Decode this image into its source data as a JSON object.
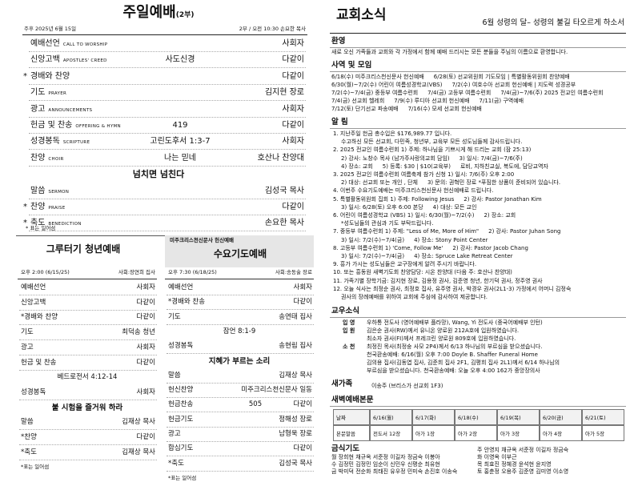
{
  "left": {
    "title": "주일예배",
    "title_note": "(2부)",
    "date": "주후 2025년 6월 15일",
    "service_info": "2부 / 오전 10:30 손요한 목사",
    "order": {
      "rows": [
        {
          "label": "예배선언",
          "en": "CALL TO WORSHIP",
          "right": "사회자"
        },
        {
          "label": "신앙고백",
          "en": "APOSTLES' CREED",
          "mid": "사도신경",
          "right": "다같이"
        },
        {
          "star": "*",
          "label": "경배와 찬양",
          "right": "다같이"
        },
        {
          "label": "기도",
          "en": "PRAYER",
          "right": "김지현 장로"
        },
        {
          "label": "광고",
          "en": "ANNOUNCEMENTS",
          "right": "사회자"
        },
        {
          "label": "헌금 및 찬송",
          "en": "OFFERING & HYMN",
          "mid": "419",
          "right": "다같이"
        },
        {
          "label": "성경봉독",
          "en": "SCRIPTURE",
          "mid": "고린도후서 1:3-7",
          "right": "사회자"
        },
        {
          "label": "찬양",
          "en": "CHOIR",
          "mid": "나는 믿네",
          "right": "호산나 찬양대"
        },
        {
          "heading": "넘치면 넘친다"
        },
        {
          "label": "말씀",
          "en": "SERMON",
          "right": "김성국 목사"
        },
        {
          "star": "*",
          "label": "찬양",
          "en": "PRAISE",
          "right": "다같이"
        },
        {
          "star": "*",
          "label": "축도",
          "en": "BENEDICTION",
          "right": "손요한 목사"
        }
      ]
    },
    "footnote": "* 표는 일어섬",
    "youth": {
      "title": "그루터기 청년예배",
      "time": "오후 2:00 (6/15/25)",
      "leader": "사회:장연희 집사",
      "rows": [
        {
          "label": "예배선언",
          "right": "사회자"
        },
        {
          "label": "신앙고백",
          "right": "다같이"
        },
        {
          "label": "*경배와 찬양",
          "right": "다같이"
        },
        {
          "label": "기도",
          "right": "최덕송 청년"
        },
        {
          "label": "광고",
          "right": "사회자"
        },
        {
          "label": "헌금 및 찬송",
          "right": "다같이"
        },
        {
          "center": "베드로전서 4:12-14"
        },
        {
          "label": "성경봉독",
          "right": "사회자"
        },
        {
          "heading": "불 시험을 즐거워 하라"
        },
        {
          "label": "말씀",
          "right": "김재상 목사"
        },
        {
          "label": "*찬양",
          "right": "다같이"
        },
        {
          "label": "*축도",
          "right": "김재상 목사"
        }
      ],
      "footnote": "*표는 일어섬"
    },
    "wednesday": {
      "header": "미주크리스천신문사 헌신예배",
      "title": "수요기도예배",
      "time": "오후 7:30 (6/18/25)",
      "leader": "사회:송동술 장로",
      "rows": [
        {
          "label": "예배선언",
          "right": "사회자"
        },
        {
          "label": "*경배와 찬송",
          "right": "다같이"
        },
        {
          "label": "기도",
          "right": "송연태 집사"
        },
        {
          "center": "잠언 8:1-9"
        },
        {
          "label": "성경봉독",
          "right": "송현림 집사"
        },
        {
          "heading": "지혜가 부르는 소리"
        },
        {
          "label": "말씀",
          "right": "김재상 목사"
        },
        {
          "label": "헌신찬양",
          "right": "미주크리스천신문사 일동"
        },
        {
          "label": "헌금찬송",
          "mid": "505",
          "right": "다같이"
        },
        {
          "label": "헌금기도",
          "right": "정해성 장로"
        },
        {
          "label": "광고",
          "right": "남형욱 장로"
        },
        {
          "label": "합심기도",
          "right": "다같이"
        },
        {
          "label": "*축도",
          "right": "김성국 목사"
        }
      ],
      "footnote": "*표는 일어섬"
    }
  },
  "right": {
    "title": "교회소식",
    "subtitle": "6월 성령의 달– 성령의 불길 타오르게 하소서",
    "welcome": {
      "heading": "환영",
      "text": "새로 오신 가족들과 교회와 각 가정에서 함께 예배 드리시는 모든 분들을 주님의 이름으로 환영합니다."
    },
    "ministry": {
      "heading": "사역 및 모임",
      "lines": [
        [
          "6/18(수) 미주크리스천신문사 헌신예배",
          "6/28(토) 선교위원회 기도모임 | 특별활동위원회 찬양예배"
        ],
        [
          "6/30(월)~7/2(수) 어린이 여름성경학교(VBS)",
          "7/2(수) 여호수아 선교회 헌신예배 | 지도력 성경공부"
        ],
        [
          "7/2(수)~7/4(금) 중등부 여름수련회",
          "7/4(금) 고등부 여름수련회",
          "7/4(금)~7/6(주) 2025 전교인 여름수련회"
        ],
        [
          "7/4(금) 선교회 헬레희",
          "7/9(수) 루디아 선교회 헌신예배",
          "7/11(금) 구역예배"
        ],
        [
          "7/12(토) 단기선교 파송예배",
          "7/16(수) 모세 선교회 헌신예배"
        ]
      ]
    },
    "announcements": {
      "heading": "알 림",
      "items": [
        [
          [
            "1. 지난주일 헌금 총수입은 $176,989.77 입니다."
          ],
          [
            "수고하신 모든 선교회, 다민족, 청년부, 교육부 모든 성도님들께 감사드립니다."
          ]
        ],
        [
          [
            "2. 2025 전교인 여름수련회 1) 주제: 하나님을 기쁘시게 해 드리는 교회 (잠 25:13)"
          ],
          [
            "2) 강사: 노창수 목사 (남가주사랑의교회 담임)",
            "3) 일시: 7/4(금)~7/6(주)"
          ],
          [
            "4) 장소: 교회",
            "5) 등록: $30 | $10(교육부)",
            "로비, 지하친교실, 복도에, 담당교역자"
          ]
        ],
        [
          [
            "3. 2025 전교인 여름수련회 여름축제 참가 신청 1) 일시: 7/6(주) 오후 2:00"
          ],
          [
            "2) 대상: 선교회 또는 개인 , 단체",
            "3) 문의: 권혁민 장로 *푸짐한 상품이 준비되어 있습니다."
          ]
        ],
        [
          [
            "4. 이번주 수요기도예배는 미주크리스천신문사 헌신예배로 드립니다."
          ]
        ],
        [
          [
            "5. 특별활동위원회 집회 1) 주제: Following Jesus",
            "2) 강사: Pastor Jonathan Kim"
          ],
          [
            "3) 일시: 6/28(토) 오후 6:00 본당",
            "4) 대상: 모든 교인"
          ]
        ],
        [
          [
            "6. 어린이 여름성경학교 (VBS) 1) 일시: 6/30(월)~7/2(수)",
            "2) 장소: 교회"
          ],
          [
            "*성도님들의 관심과 기도 부탁드립니다."
          ]
        ],
        [
          [
            "7. 중등부 여름수련회 1) 주제: \"Less of Me, More of Him\"",
            "2) 강사: Pastor Juhan Song"
          ],
          [
            "3) 일시: 7/2(수)~7/4(금)",
            "4) 장소: Stony Point Center"
          ]
        ],
        [
          [
            "8. 고등부 여름수련회 1) 'Come, Follow Me'",
            "2) 강사: Pastor Jacob Chang"
          ],
          [
            "3) 일시: 7/2(수)~7/4(금)",
            "4) 장소: Spruce Lake Retreat Center"
          ]
        ],
        [
          [
            "9. 흥가 가시는 성도님들은 교구장에게 알려 주시기 바랍니다."
          ]
        ],
        [
          [
            "10. 또는 흥동원 새벽기도회 찬양담당: 시온 찬양대 (다음 주: 호산나 찬양대)"
          ]
        ],
        [
          [
            "11. 가족기별 장학기금: 김지현 장로, 김용정 권사, 김준영 청년, 한기덕 권사, 정주영 권사"
          ]
        ],
        [
          [
            "12. 오늘 식사는 최정순 권사, 최정호 집사, 유주영 권사, 박경우 권사(2L1-3) 가정에서 어머니 김정숙"
          ],
          [
            "권사의 장례예배를 위하여 교회에 주심에 감사하여 제공합니다."
          ]
        ]
      ]
    },
    "members": {
      "heading": "교우소식",
      "rows": [
        {
          "label": "입 영",
          "text": "우하통 전도사 (영어예배부 플라망), Wang, Yi 전도사 (중국어예배부 인턴)"
        },
        {
          "label": "입 원",
          "text": "김은순 권사(RW)께서 유니온 양로원 212A호에 입원하였습니다."
        },
        {
          "text": "최소자 권사(FI)께서 프레크린 양로원 809호에 입원하였습니다."
        },
        {
          "label": "소 천",
          "text": "최정진 목사(최정숭 사모 2P4)께서 6/13 하나님의 부르심을 받으셨습니다."
        },
        {
          "text": "천국환송예배: 6/16(월) 오후 7:00 Doyle B. Shaffer Funeral Home"
        },
        {
          "text": "김의용 집사(김동엽 집사, 김준희 집사 2F1, 김평희 집사 2L1)께서 6/14 하나님의"
        },
        {
          "text": "부르심을 받으셨습니다. 천국환송예배: 오늘 오후 4:00 162가 중앙장의사"
        }
      ]
    },
    "newcomers": {
      "heading": "새가족",
      "text": "이송주 (브리스가 선교회 1F3)"
    },
    "dawn": {
      "heading": "새벽예배본문",
      "table": [
        [
          "날짜",
          "6/16(월)",
          "6/17(화)",
          "6/18(수)",
          "6/19(목)",
          "6/20(금)",
          "6/21(토)"
        ],
        [
          "본문말씀",
          "전도서 12장",
          "아가 1장",
          "아가 2장",
          "아가 3장",
          "아가 4장",
          "아가 5장"
        ]
      ]
    },
    "fasting": {
      "heading": "금식기도",
      "left": [
        "월 장희현 채규옥 서준정 이길자 정금숙 이봉아",
        "수 김정민 김정민 임순이 신민우 신평순 최유현",
        "금 박미덕 전순화 최태진 유우정 민미숙 손진호 이송숙"
      ],
      "right": [
        "주 안영지 채규옥 서준정 이길자 정금숙",
        "화 이영옥 이부근",
        "목 최효진 정혜경 윤석현 윤지영",
        "토 홍춘정 오용주 김준영 김미영 이소영"
      ]
    }
  }
}
